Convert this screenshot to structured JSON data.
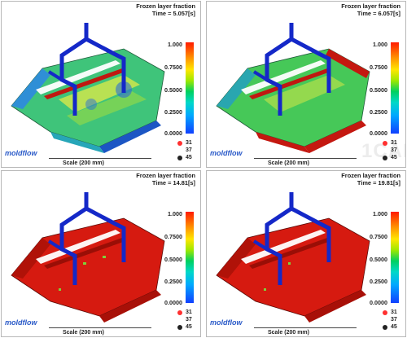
{
  "panels": [
    {
      "title": "Frozen layer fraction",
      "time": "Time = 5.057[s]",
      "state": "early"
    },
    {
      "title": "Frozen layer fraction",
      "time": "Time = 6.057[s]",
      "state": "mid"
    },
    {
      "title": "Frozen layer fraction",
      "time": "Time = 14.81[s]",
      "state": "frozen"
    },
    {
      "title": "Frozen layer fraction",
      "time": "Time = 19.81[s]",
      "state": "frozen"
    }
  ],
  "legend": {
    "ticks": [
      "1.000",
      "0.7500",
      "0.5000",
      "0.2500",
      "0.0000"
    ]
  },
  "scale_label": "Scale (200 mm)",
  "logo": "moldflow",
  "axis": {
    "a": "31",
    "b": "37",
    "c": "45"
  },
  "watermark": "1CAE.COM",
  "colors": {
    "frozen": "#d61a10",
    "partial": "#7fd03a",
    "green": "#35c46a",
    "cool": "#2a7bd8",
    "runner": "#1428c8"
  }
}
